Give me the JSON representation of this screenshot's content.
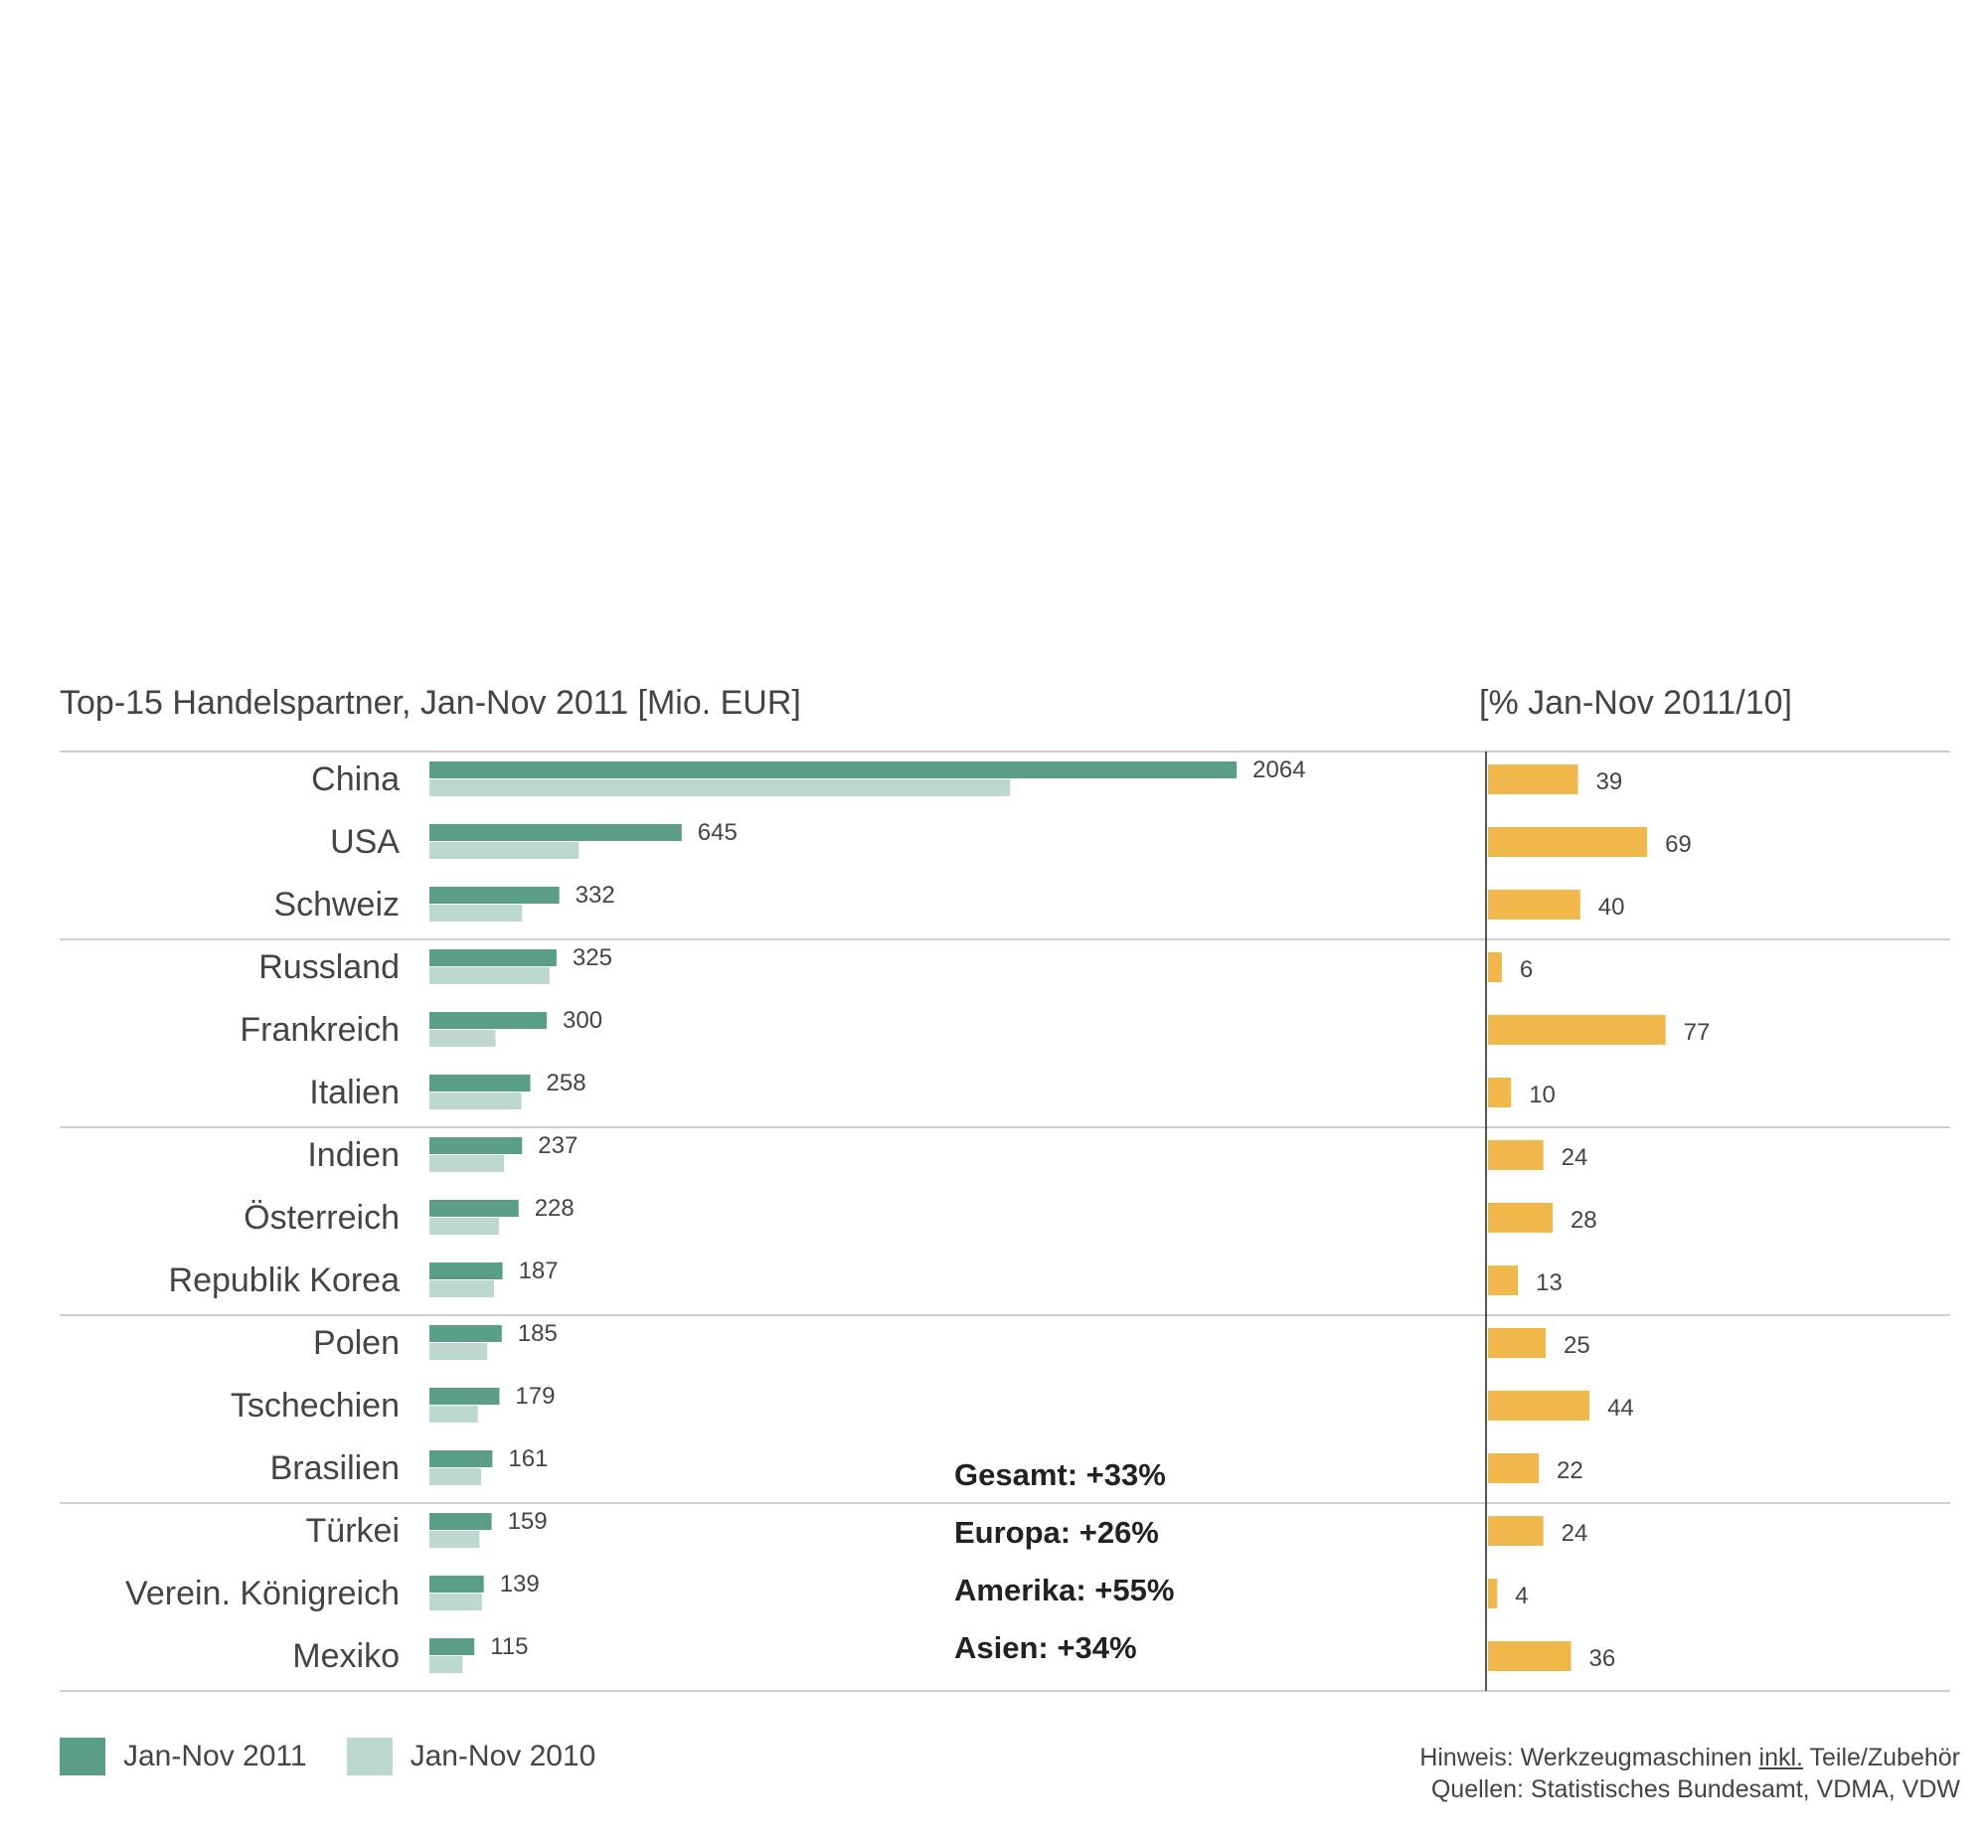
{
  "chart_data": {
    "type": "bar",
    "title": "Top-15 Handelspartner, Jan-Nov 2011  [Mio. EUR]",
    "right_title": "[% Jan-Nov 2011/10]",
    "categories": [
      "China",
      "USA",
      "Schweiz",
      "Russland",
      "Frankreich",
      "Italien",
      "Indien",
      "Österreich",
      "Republik Korea",
      "Polen",
      "Tschechien",
      "Brasilien",
      "Türkei",
      "Verein. Königreich",
      "Mexiko"
    ],
    "series": [
      {
        "name": "Jan-Nov 2011",
        "color": "#5a9e87",
        "values": [
          2064,
          645,
          332,
          325,
          300,
          258,
          237,
          228,
          187,
          185,
          179,
          161,
          159,
          139,
          115
        ]
      },
      {
        "name": "Jan-Nov 2010",
        "color": "#bcd8cf",
        "values": [
          1485,
          382,
          237,
          307,
          169,
          235,
          191,
          178,
          165,
          148,
          124,
          132,
          128,
          134,
          85
        ]
      }
    ],
    "growth": {
      "color": "#f0b84b",
      "values": [
        39,
        69,
        40,
        6,
        77,
        10,
        24,
        28,
        13,
        25,
        44,
        22,
        24,
        4,
        36
      ]
    },
    "value_labels": [
      "2064",
      "645",
      "332",
      "325",
      "300",
      "258",
      "237",
      "228",
      "187",
      "185",
      "179",
      "161",
      "159",
      "139",
      "115"
    ],
    "growth_labels": [
      "39",
      "69",
      "40",
      "6",
      "77",
      "10",
      "24",
      "28",
      "13",
      "25",
      "44",
      "22",
      "24",
      "4",
      "36"
    ],
    "group_size": 3,
    "legend_position": "bottom-left"
  },
  "summary": [
    {
      "label": "Gesamt: +33%"
    },
    {
      "label": "Europa: +26%"
    },
    {
      "label": "Amerika: +55%"
    },
    {
      "label": "Asien: +34%"
    }
  ],
  "note": {
    "line1_a": "Hinweis: Werkzeugmaschinen ",
    "line1_b": "inkl.",
    "line1_c": " Teile/Zubehör",
    "line2": "Quellen: Statistisches Bundesamt, VDMA, VDW"
  }
}
